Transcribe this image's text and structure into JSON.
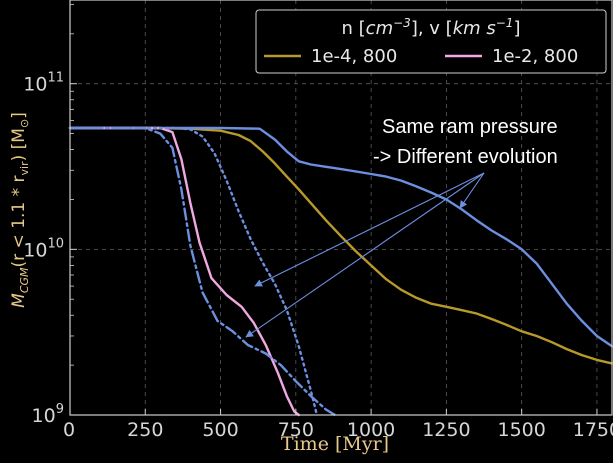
{
  "chart_data": {
    "type": "line",
    "xlabel": "Time [Myr]",
    "ylabel": "M_CGM(r < 1.1 * r_vir) [M⊙]",
    "ylabel_parts": {
      "main": "M",
      "sub1": "CGM",
      "mid": "(r < 1.1 * r",
      "sub2": "vir",
      "end": ") [M",
      "sun": "⊙",
      "close": "]"
    },
    "xlim": [
      0,
      1800
    ],
    "ylim": [
      1000000000.0,
      320000000000.0
    ],
    "yscale": "log",
    "grid": true,
    "xticks": [
      0,
      250,
      500,
      750,
      1000,
      1250,
      1500,
      1750
    ],
    "yticks": [
      {
        "value": 1000000000.0,
        "base": "10",
        "exp": "9"
      },
      {
        "value": 10000000000.0,
        "base": "10",
        "exp": "10"
      },
      {
        "value": 100000000000.0,
        "base": "10",
        "exp": "11"
      }
    ],
    "legend": {
      "position": "top-right",
      "title": "n [cm⁻³], v [km s⁻¹]",
      "title_parts": {
        "a": "n [",
        "b": "cm",
        "c": "−3",
        "d": "], v [",
        "e": "km s",
        "f": "−1",
        "g": "]"
      },
      "entries": [
        {
          "label": "1e-4, 800",
          "color": "#b89a2b"
        },
        {
          "label": "1e-2, 800",
          "color": "#f0a8e0"
        }
      ]
    },
    "annotation": {
      "line1": "Same ram pressure",
      "line2": "-> Different evolution",
      "arrow_color": "#6d8fe0"
    },
    "series": [
      {
        "color": "#b89a2b",
        "style": "solid",
        "x": [
          0,
          250,
          400,
          500,
          560,
          600,
          640,
          680,
          720,
          760,
          800,
          850,
          900,
          950,
          1000,
          1050,
          1100,
          1150,
          1200,
          1250,
          1300,
          1350,
          1400,
          1450,
          1500,
          1550,
          1600,
          1650,
          1700,
          1750,
          1800
        ],
        "y": [
          54000000000.0,
          54000000000.0,
          53500000000.0,
          52000000000.0,
          49000000000.0,
          45000000000.0,
          39000000000.0,
          33000000000.0,
          27500000000.0,
          23000000000.0,
          19000000000.0,
          15000000000.0,
          12000000000.0,
          9700000000.0,
          8000000000.0,
          6600000000.0,
          5700000000.0,
          5100000000.0,
          4700000000.0,
          4500000000.0,
          4300000000.0,
          4100000000.0,
          3800000000.0,
          3500000000.0,
          3200000000.0,
          3000000000.0,
          2750000000.0,
          2500000000.0,
          2300000000.0,
          2150000000.0,
          2050000000.0
        ]
      },
      {
        "color": "#6d8fe0",
        "style": "solid",
        "x": [
          0,
          250,
          500,
          630,
          680,
          720,
          760,
          800,
          850,
          900,
          950,
          1000,
          1050,
          1100,
          1150,
          1200,
          1250,
          1300,
          1350,
          1400,
          1450,
          1500,
          1550,
          1600,
          1650,
          1700,
          1750,
          1800
        ],
        "y": [
          54000000000.0,
          54000000000.0,
          54000000000.0,
          53500000000.0,
          46000000000.0,
          39000000000.0,
          34000000000.0,
          32500000000.0,
          31500000000.0,
          30500000000.0,
          29500000000.0,
          28500000000.0,
          27500000000.0,
          26000000000.0,
          24000000000.0,
          22000000000.0,
          20000000000.0,
          17500000000.0,
          15000000000.0,
          13000000000.0,
          11500000000.0,
          10000000000.0,
          8200000000.0,
          6200000000.0,
          4700000000.0,
          3700000000.0,
          3000000000.0,
          2600000000.0
        ]
      },
      {
        "color": "#f0a8e0",
        "style": "solid",
        "x": [
          0,
          250,
          300,
          340,
          370,
          400,
          430,
          470,
          520,
          570,
          610,
          650,
          690,
          720,
          745,
          760
        ],
        "y": [
          54000000000.0,
          54000000000.0,
          54000000000.0,
          51000000000.0,
          35000000000.0,
          19000000000.0,
          11000000000.0,
          6700000000.0,
          5300000000.0,
          4500000000.0,
          3600000000.0,
          2650000000.0,
          1800000000.0,
          1300000000.0,
          1050000000.0,
          1000000000.0
        ]
      },
      {
        "color": "#6d8fe0",
        "style": "dashdot",
        "x": [
          0,
          250,
          300,
          340,
          370,
          400,
          440,
          490,
          540,
          590,
          650,
          700,
          750,
          800,
          850,
          880
        ],
        "y": [
          54000000000.0,
          54000000000.0,
          50000000000.0,
          41000000000.0,
          23000000000.0,
          10500000000.0,
          5500000000.0,
          3700000000.0,
          3200000000.0,
          2650000000.0,
          2350000000.0,
          2000000000.0,
          1600000000.0,
          1300000000.0,
          1080000000.0,
          1000000000.0
        ]
      },
      {
        "color": "#6d8fe0",
        "style": "dotted",
        "x": [
          0,
          250,
          350,
          400,
          440,
          480,
          520,
          560,
          600,
          640,
          680,
          720,
          760,
          800,
          820
        ],
        "y": [
          54000000000.0,
          54000000000.0,
          54000000000.0,
          53000000000.0,
          48000000000.0,
          38000000000.0,
          26000000000.0,
          17000000000.0,
          11500000000.0,
          8300000000.0,
          6200000000.0,
          4300000000.0,
          2600000000.0,
          1400000000.0,
          1000000000.0
        ]
      }
    ]
  }
}
